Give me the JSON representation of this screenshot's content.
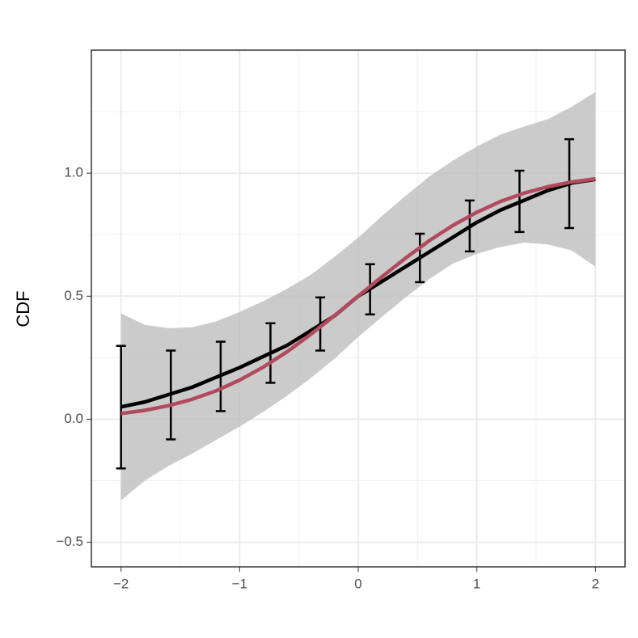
{
  "chart_data": {
    "type": "line",
    "y_label": "CDF",
    "xlim": [
      -2.25,
      2.25
    ],
    "ylim": [
      -0.6,
      1.5
    ],
    "xticks": [
      {
        "value": -2,
        "label": "−2"
      },
      {
        "value": -1,
        "label": "−1"
      },
      0,
      1,
      2
    ],
    "yticks": [
      {
        "value": -0.5,
        "label": "−0.5"
      },
      {
        "value": 0,
        "label": "0.0"
      },
      0.5,
      {
        "value": 1,
        "label": "1.0"
      }
    ],
    "xminor": [
      -1.5,
      -0.5,
      0.5,
      1.5
    ],
    "yminor": [
      -0.25,
      0.25,
      0.75,
      1.25
    ],
    "grid": true,
    "x": [
      -2,
      -1.8,
      -1.6,
      -1.4,
      -1.2,
      -1,
      -0.8,
      -0.6,
      -0.4,
      -0.2,
      0,
      0.2,
      0.4,
      0.6,
      0.8,
      1,
      1.2,
      1.4,
      1.6,
      1.8,
      2
    ],
    "band": {
      "color": "#bebebe",
      "lower": [
        -0.33,
        -0.25,
        -0.19,
        -0.14,
        -0.085,
        -0.03,
        0.03,
        0.095,
        0.167,
        0.246,
        0.334,
        0.416,
        0.495,
        0.57,
        0.633,
        0.672,
        0.7,
        0.718,
        0.71,
        0.686,
        0.62
      ],
      "upper": [
        0.43,
        0.384,
        0.37,
        0.374,
        0.397,
        0.436,
        0.48,
        0.53,
        0.587,
        0.66,
        0.738,
        0.826,
        0.908,
        0.987,
        1.052,
        1.108,
        1.157,
        1.19,
        1.22,
        1.27,
        1.33
      ]
    },
    "series": [
      {
        "color": "#000000",
        "values": [
          0.05,
          0.07,
          0.1,
          0.13,
          0.17,
          0.21,
          0.255,
          0.3,
          0.36,
          0.42,
          0.5,
          0.56,
          0.62,
          0.68,
          0.74,
          0.8,
          0.85,
          0.89,
          0.93,
          0.96,
          0.975
        ]
      },
      {
        "color": "#b24a5e",
        "values": [
          0.023,
          0.036,
          0.055,
          0.081,
          0.115,
          0.159,
          0.212,
          0.274,
          0.345,
          0.421,
          0.5,
          0.579,
          0.655,
          0.726,
          0.788,
          0.841,
          0.885,
          0.919,
          0.945,
          0.964,
          0.977
        ]
      }
    ],
    "errorbars": {
      "color": "#000000",
      "x": [
        -2,
        -1.58,
        -1.16,
        -0.74,
        -0.32,
        0.1,
        0.52,
        0.94,
        1.36,
        1.78
      ],
      "lower": [
        -0.2,
        -0.082,
        0.033,
        0.148,
        0.279,
        0.426,
        0.557,
        0.682,
        0.761,
        0.777
      ],
      "upper": [
        0.298,
        0.279,
        0.315,
        0.39,
        0.495,
        0.63,
        0.754,
        0.889,
        1.01,
        1.138
      ]
    }
  }
}
